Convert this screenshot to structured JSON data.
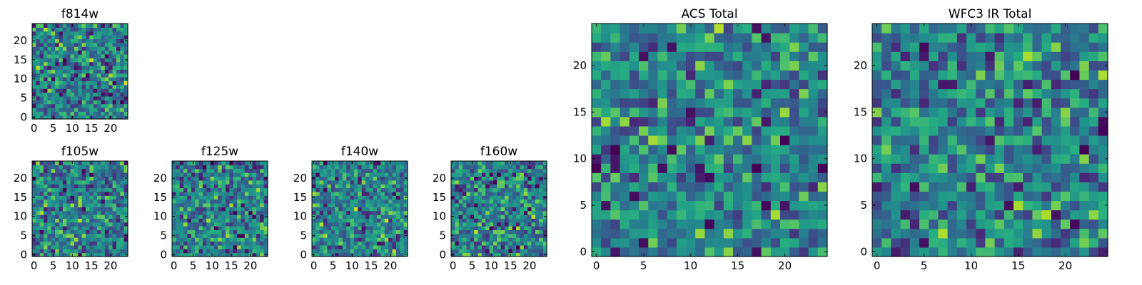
{
  "chart_data": [
    {
      "type": "heatmap",
      "title": "f814w",
      "x_ticks": [
        "0",
        "5",
        "10",
        "15",
        "20"
      ],
      "y_ticks": [
        "0",
        "5",
        "10",
        "15",
        "20"
      ],
      "xlim": [
        -0.5,
        24.5
      ],
      "ylim": [
        -0.5,
        24.5
      ],
      "grid_size": [
        25,
        25
      ],
      "colormap": "viridis",
      "seed": 11,
      "dark_cells": 22,
      "grid": false
    },
    {
      "type": "heatmap",
      "title": "f105w",
      "x_ticks": [
        "0",
        "5",
        "10",
        "15",
        "20"
      ],
      "y_ticks": [
        "0",
        "5",
        "10",
        "15",
        "20"
      ],
      "xlim": [
        -0.5,
        24.5
      ],
      "ylim": [
        -0.5,
        24.5
      ],
      "grid_size": [
        25,
        25
      ],
      "colormap": "viridis",
      "seed": 23,
      "dark_cells": 14,
      "grid": false
    },
    {
      "type": "heatmap",
      "title": "f125w",
      "x_ticks": [
        "0",
        "5",
        "10",
        "15",
        "20"
      ],
      "y_ticks": [
        "0",
        "5",
        "10",
        "15",
        "20"
      ],
      "xlim": [
        -0.5,
        24.5
      ],
      "ylim": [
        -0.5,
        24.5
      ],
      "grid_size": [
        25,
        25
      ],
      "colormap": "viridis",
      "seed": 37,
      "dark_cells": 16,
      "grid": false
    },
    {
      "type": "heatmap",
      "title": "f140w",
      "x_ticks": [
        "0",
        "5",
        "10",
        "15",
        "20"
      ],
      "y_ticks": [
        "0",
        "5",
        "10",
        "15",
        "20"
      ],
      "xlim": [
        -0.5,
        24.5
      ],
      "ylim": [
        -0.5,
        24.5
      ],
      "grid_size": [
        25,
        25
      ],
      "colormap": "viridis",
      "seed": 41,
      "dark_cells": 12,
      "grid": false
    },
    {
      "type": "heatmap",
      "title": "f160w",
      "x_ticks": [
        "0",
        "5",
        "10",
        "15",
        "20"
      ],
      "y_ticks": [
        "0",
        "5",
        "10",
        "15",
        "20"
      ],
      "xlim": [
        -0.5,
        24.5
      ],
      "ylim": [
        -0.5,
        24.5
      ],
      "grid_size": [
        25,
        25
      ],
      "colormap": "viridis",
      "seed": 53,
      "dark_cells": 14,
      "grid": false
    },
    {
      "type": "heatmap",
      "title": "ACS Total",
      "x_ticks": [
        "0",
        "5",
        "10",
        "15",
        "20"
      ],
      "y_ticks": [
        "0",
        "5",
        "10",
        "15",
        "20"
      ],
      "xlim": [
        -0.5,
        24.5
      ],
      "ylim": [
        -0.5,
        24.5
      ],
      "grid_size": [
        25,
        25
      ],
      "colormap": "viridis",
      "seed": 67,
      "dark_cells": 10,
      "grid": false
    },
    {
      "type": "heatmap",
      "title": "WFC3 IR Total",
      "x_ticks": [
        "0",
        "5",
        "10",
        "15",
        "20"
      ],
      "y_ticks": [
        "0",
        "5",
        "10",
        "15",
        "20"
      ],
      "xlim": [
        -0.5,
        24.5
      ],
      "ylim": [
        -0.5,
        24.5
      ],
      "grid_size": [
        25,
        25
      ],
      "colormap": "viridis",
      "seed": 79,
      "dark_cells": 11,
      "grid": false
    }
  ]
}
